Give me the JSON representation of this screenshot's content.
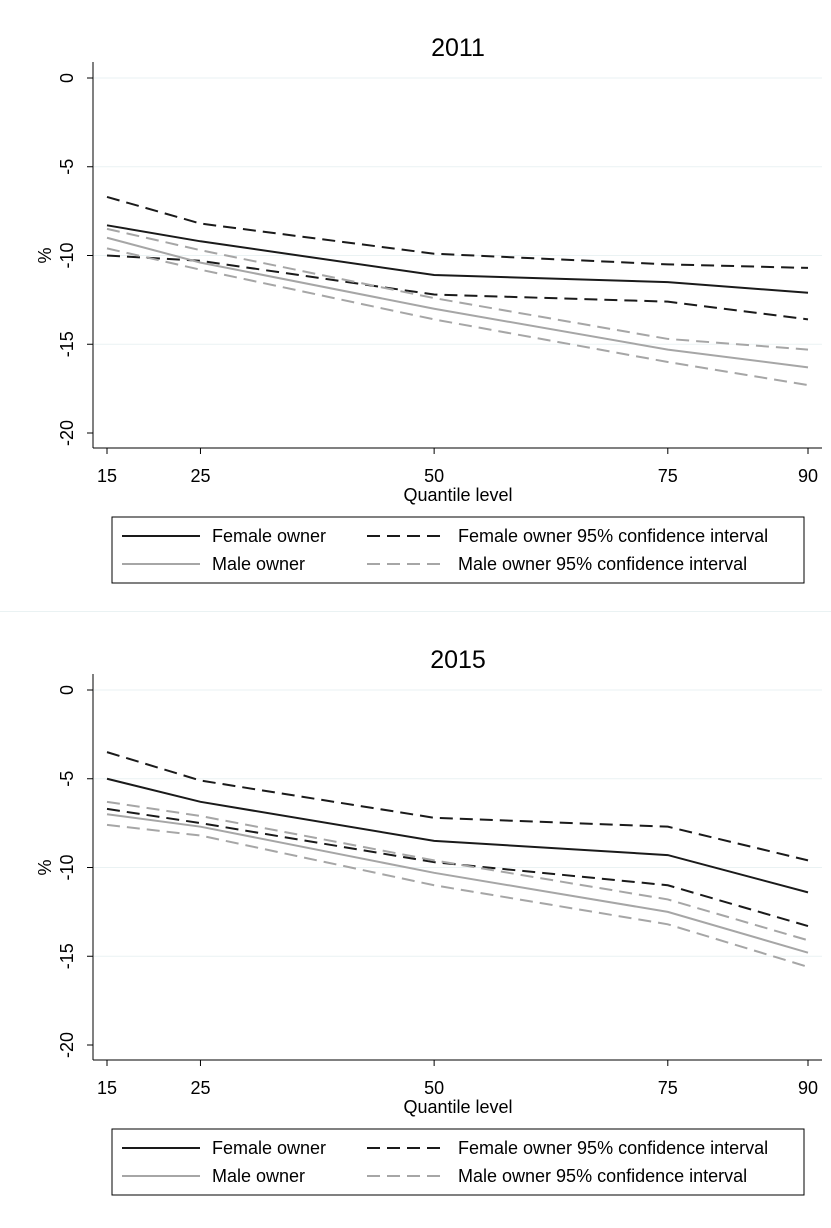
{
  "chart_data": [
    {
      "type": "line",
      "title": "2011",
      "xlabel": "Quantile level",
      "ylabel": "%",
      "x": [
        15,
        25,
        50,
        75,
        90
      ],
      "xticks": [
        "15",
        "25",
        "50",
        "75",
        "90"
      ],
      "yticks": [
        "0",
        "-5",
        "-10",
        "-15",
        "-20"
      ],
      "xlim": [
        15,
        90
      ],
      "ylim": [
        -20,
        0
      ],
      "grid": true,
      "legend_position": "bottom",
      "series": [
        {
          "name": "Female owner",
          "color": "#1a1a1a",
          "dash": "solid",
          "values": [
            -8.3,
            -9.2,
            -11.1,
            -11.5,
            -12.1
          ]
        },
        {
          "name": "Female owner 95% confidence interval",
          "color": "#1a1a1a",
          "dash": "dashed",
          "values": [
            -6.7,
            -8.2,
            -9.9,
            -10.5,
            -10.7
          ]
        },
        {
          "name": "",
          "color": "#1a1a1a",
          "dash": "dashed",
          "values": [
            -10.0,
            -10.3,
            -12.2,
            -12.6,
            -13.6
          ]
        },
        {
          "name": "Male owner",
          "color": "#a6a6a6",
          "dash": "solid",
          "values": [
            -9.0,
            -10.4,
            -13.0,
            -15.3,
            -16.3
          ]
        },
        {
          "name": "Male owner 95% confidence interval",
          "color": "#a6a6a6",
          "dash": "dashed",
          "values": [
            -8.5,
            -9.7,
            -12.4,
            -14.7,
            -15.3
          ]
        },
        {
          "name": "",
          "color": "#a6a6a6",
          "dash": "dashed",
          "values": [
            -9.6,
            -10.8,
            -13.6,
            -16.0,
            -17.3
          ]
        }
      ]
    },
    {
      "type": "line",
      "title": "2015",
      "xlabel": "Quantile level",
      "ylabel": "%",
      "x": [
        15,
        25,
        50,
        75,
        90
      ],
      "xticks": [
        "15",
        "25",
        "50",
        "75",
        "90"
      ],
      "yticks": [
        "0",
        "-5",
        "-10",
        "-15",
        "-20"
      ],
      "xlim": [
        15,
        90
      ],
      "ylim": [
        -20,
        0
      ],
      "grid": true,
      "legend_position": "bottom",
      "series": [
        {
          "name": "Female owner",
          "color": "#1a1a1a",
          "dash": "solid",
          "values": [
            -5.0,
            -6.3,
            -8.5,
            -9.3,
            -11.4
          ]
        },
        {
          "name": "Female owner 95% confidence interval",
          "color": "#1a1a1a",
          "dash": "dashed",
          "values": [
            -3.5,
            -5.1,
            -7.2,
            -7.7,
            -9.6
          ]
        },
        {
          "name": "",
          "color": "#1a1a1a",
          "dash": "dashed",
          "values": [
            -6.7,
            -7.5,
            -9.7,
            -11.0,
            -13.3
          ]
        },
        {
          "name": "Male owner",
          "color": "#a6a6a6",
          "dash": "solid",
          "values": [
            -7.0,
            -7.7,
            -10.3,
            -12.5,
            -14.8
          ]
        },
        {
          "name": "Male owner 95% confidence interval",
          "color": "#a6a6a6",
          "dash": "dashed",
          "values": [
            -6.3,
            -7.1,
            -9.6,
            -11.8,
            -14.1
          ]
        },
        {
          "name": "",
          "color": "#a6a6a6",
          "dash": "dashed",
          "values": [
            -7.6,
            -8.2,
            -11.0,
            -13.2,
            -15.6
          ]
        }
      ]
    }
  ]
}
